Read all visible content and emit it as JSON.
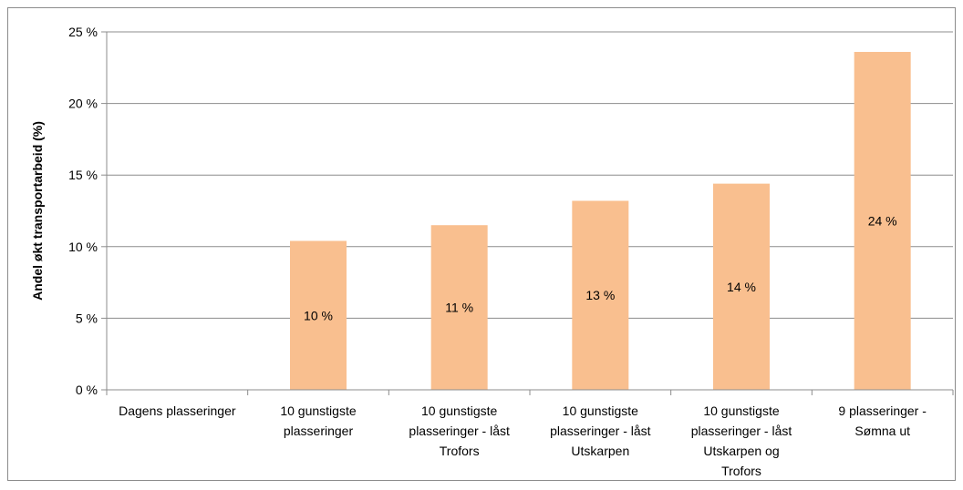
{
  "chart_data": {
    "type": "bar",
    "title": "",
    "xlabel": "",
    "ylabel": "Andel økt transportarbeid (%)",
    "ylim": [
      0,
      25
    ],
    "yticks": [
      0,
      5,
      10,
      15,
      20,
      25
    ],
    "ytick_labels": [
      "0 %",
      "5 %",
      "10 %",
      "15 %",
      "20 %",
      "25 %"
    ],
    "grid": "horizontal",
    "legend": "none",
    "bar_color": "#f9bf8f",
    "categories": [
      [
        "Dagens plasseringer"
      ],
      [
        "10 gunstigste",
        "plasseringer"
      ],
      [
        "10 gunstigste",
        "plasseringer - låst",
        "Trofors"
      ],
      [
        "10 gunstigste",
        "plasseringer - låst",
        "Utskarpen"
      ],
      [
        "10 gunstigste",
        "plasseringer - låst",
        "Utskarpen og",
        "Trofors"
      ],
      [
        "9 plasseringer -",
        "Sømna ut"
      ]
    ],
    "values": [
      0,
      10.4,
      11.5,
      13.2,
      14.4,
      23.6
    ],
    "data_labels": [
      "",
      "10 %",
      "11 %",
      "13 %",
      "14 %",
      "24 %"
    ]
  }
}
